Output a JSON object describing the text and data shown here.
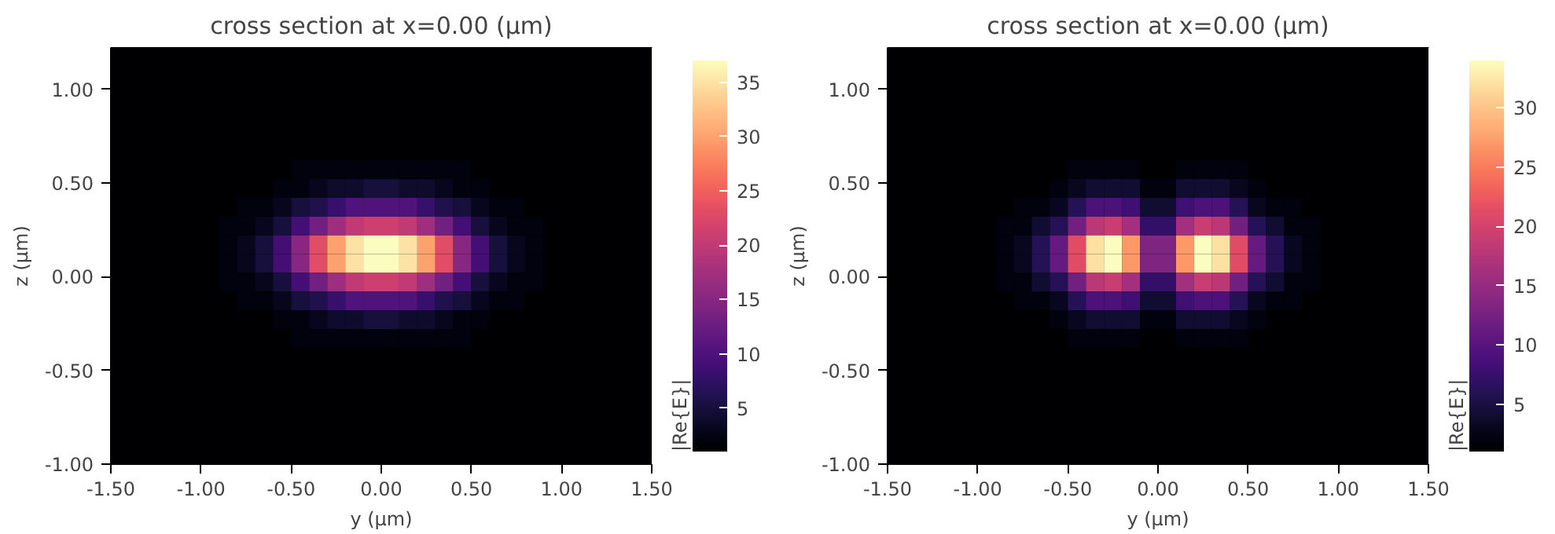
{
  "chart_data": [
    {
      "type": "heatmap",
      "title": "cross section at x=0.00 (μm)",
      "xlabel": "y (μm)",
      "ylabel": "z (μm)",
      "clabel": "|Re{E}|",
      "x": [
        -1.45,
        -1.35,
        -1.25,
        -1.15,
        -1.05,
        -0.95,
        -0.85,
        -0.75,
        -0.65,
        -0.55,
        -0.45,
        -0.35,
        -0.25,
        -0.15,
        -0.05,
        0.05,
        0.15,
        0.25,
        0.35,
        0.45,
        0.55,
        0.65,
        0.75,
        0.85,
        0.95,
        1.05,
        1.15,
        1.25,
        1.35,
        1.45
      ],
      "y": [
        1.17,
        1.07,
        0.97,
        0.87,
        0.77,
        0.67,
        0.57,
        0.47,
        0.37,
        0.27,
        0.17,
        0.07,
        -0.03,
        -0.13,
        -0.23,
        -0.33,
        -0.43,
        -0.53,
        -0.63,
        -0.73,
        -0.83,
        -0.93
      ],
      "cells": [
        [
          1,
          1,
          1,
          1,
          1,
          1,
          1,
          1,
          1,
          1,
          1,
          1,
          1,
          1,
          1,
          1,
          1,
          1,
          1,
          1,
          1,
          1,
          1,
          1,
          1,
          1,
          1,
          1,
          1,
          1
        ],
        [
          1,
          1,
          1,
          1,
          1,
          1,
          1,
          1,
          1,
          1,
          1,
          1,
          1,
          1,
          1,
          1,
          1,
          1,
          1,
          1,
          1,
          1,
          1,
          1,
          1,
          1,
          1,
          1,
          1,
          1
        ],
        [
          1,
          1,
          1,
          1,
          1,
          1,
          1,
          1,
          1,
          1,
          1,
          1,
          1,
          1,
          1,
          1,
          1,
          1,
          1,
          1,
          1,
          1,
          1,
          1,
          1,
          1,
          1,
          1,
          1,
          1
        ],
        [
          1,
          1,
          1,
          1,
          1,
          1,
          1,
          1,
          1,
          1,
          1,
          1,
          1,
          1,
          1,
          1,
          1,
          1,
          1,
          1,
          1,
          1,
          1,
          1,
          1,
          1,
          1,
          1,
          1,
          1
        ],
        [
          1,
          1,
          1,
          1,
          1,
          1,
          1,
          1,
          1,
          1,
          1,
          1,
          1,
          1,
          1,
          1,
          1,
          1,
          1,
          1,
          1,
          1,
          1,
          1,
          1,
          1,
          1,
          1,
          1,
          1
        ],
        [
          1,
          1,
          1,
          1,
          1,
          1,
          1,
          1,
          1,
          1,
          1,
          1,
          1,
          1,
          1,
          1,
          1,
          1,
          1,
          1,
          1,
          1,
          1,
          1,
          1,
          1,
          1,
          1,
          1,
          1
        ],
        [
          1,
          1,
          1,
          1,
          1,
          1,
          1,
          1,
          1,
          1,
          2,
          2,
          2,
          2,
          2,
          2,
          2,
          2,
          2,
          2,
          1,
          1,
          1,
          1,
          1,
          1,
          1,
          1,
          1,
          1
        ],
        [
          1,
          1,
          1,
          1,
          1,
          1,
          1,
          1,
          1,
          2,
          2,
          3,
          4,
          4,
          5,
          5,
          4,
          4,
          3,
          2,
          2,
          1,
          1,
          1,
          1,
          1,
          1,
          1,
          1,
          1
        ],
        [
          1,
          1,
          1,
          1,
          1,
          1,
          1,
          2,
          2,
          3,
          5,
          6,
          8,
          10,
          10,
          10,
          10,
          8,
          6,
          5,
          3,
          2,
          2,
          1,
          1,
          1,
          1,
          1,
          1,
          1
        ],
        [
          1,
          1,
          1,
          1,
          1,
          1,
          2,
          2,
          3,
          5,
          9,
          13,
          17,
          20,
          21,
          21,
          20,
          17,
          13,
          9,
          5,
          3,
          2,
          2,
          1,
          1,
          1,
          1,
          1,
          1
        ],
        [
          1,
          1,
          1,
          1,
          1,
          1,
          2,
          3,
          5,
          9,
          15,
          23,
          30,
          35,
          37,
          37,
          35,
          30,
          23,
          15,
          9,
          5,
          3,
          2,
          1,
          1,
          1,
          1,
          1,
          1
        ],
        [
          1,
          1,
          1,
          1,
          1,
          1,
          2,
          3,
          5,
          9,
          15,
          23,
          30,
          35,
          37,
          37,
          35,
          30,
          23,
          15,
          9,
          5,
          3,
          2,
          1,
          1,
          1,
          1,
          1,
          1
        ],
        [
          1,
          1,
          1,
          1,
          1,
          1,
          2,
          2,
          3,
          5,
          9,
          13,
          17,
          20,
          21,
          21,
          20,
          17,
          13,
          9,
          5,
          3,
          2,
          2,
          1,
          1,
          1,
          1,
          1,
          1
        ],
        [
          1,
          1,
          1,
          1,
          1,
          1,
          1,
          2,
          2,
          3,
          5,
          6,
          8,
          10,
          10,
          10,
          10,
          8,
          6,
          5,
          3,
          2,
          2,
          1,
          1,
          1,
          1,
          1,
          1,
          1
        ],
        [
          1,
          1,
          1,
          1,
          1,
          1,
          1,
          1,
          1,
          2,
          2,
          3,
          4,
          4,
          5,
          5,
          4,
          4,
          3,
          2,
          2,
          1,
          1,
          1,
          1,
          1,
          1,
          1,
          1,
          1
        ],
        [
          1,
          1,
          1,
          1,
          1,
          1,
          1,
          1,
          1,
          1,
          2,
          2,
          2,
          2,
          2,
          2,
          2,
          2,
          2,
          2,
          1,
          1,
          1,
          1,
          1,
          1,
          1,
          1,
          1,
          1
        ],
        [
          1,
          1,
          1,
          1,
          1,
          1,
          1,
          1,
          1,
          1,
          1,
          1,
          1,
          1,
          1,
          1,
          1,
          1,
          1,
          1,
          1,
          1,
          1,
          1,
          1,
          1,
          1,
          1,
          1,
          1
        ],
        [
          1,
          1,
          1,
          1,
          1,
          1,
          1,
          1,
          1,
          1,
          1,
          1,
          1,
          1,
          1,
          1,
          1,
          1,
          1,
          1,
          1,
          1,
          1,
          1,
          1,
          1,
          1,
          1,
          1,
          1
        ],
        [
          1,
          1,
          1,
          1,
          1,
          1,
          1,
          1,
          1,
          1,
          1,
          1,
          1,
          1,
          1,
          1,
          1,
          1,
          1,
          1,
          1,
          1,
          1,
          1,
          1,
          1,
          1,
          1,
          1,
          1
        ],
        [
          1,
          1,
          1,
          1,
          1,
          1,
          1,
          1,
          1,
          1,
          1,
          1,
          1,
          1,
          1,
          1,
          1,
          1,
          1,
          1,
          1,
          1,
          1,
          1,
          1,
          1,
          1,
          1,
          1,
          1
        ],
        [
          1,
          1,
          1,
          1,
          1,
          1,
          1,
          1,
          1,
          1,
          1,
          1,
          1,
          1,
          1,
          1,
          1,
          1,
          1,
          1,
          1,
          1,
          1,
          1,
          1,
          1,
          1,
          1,
          1,
          1
        ],
        [
          1,
          1,
          1,
          1,
          1,
          1,
          1,
          1,
          1,
          1,
          1,
          1,
          1,
          1,
          1,
          1,
          1,
          1,
          1,
          1,
          1,
          1,
          1,
          1,
          1,
          1,
          1,
          1,
          1,
          1
        ]
      ],
      "clim": [
        1,
        37
      ],
      "cticks": [
        5,
        10,
        15,
        20,
        25,
        30,
        35
      ],
      "xlim": [
        -1.5,
        1.5
      ],
      "ylim": [
        -1.0,
        1.22
      ],
      "xticks": [
        {
          "value": -1.5,
          "label": "-1.50"
        },
        {
          "value": -1.0,
          "label": "-1.00"
        },
        {
          "value": -0.5,
          "label": "-0.50"
        },
        {
          "value": 0,
          "label": "0.00"
        },
        {
          "value": 0.5,
          "label": "0.50"
        },
        {
          "value": 1.0,
          "label": "1.00"
        },
        {
          "value": 1.5,
          "label": "1.50"
        }
      ],
      "yticks": [
        {
          "value": -1.0,
          "label": "-1.00"
        },
        {
          "value": -0.5,
          "label": "-0.50"
        },
        {
          "value": 0,
          "label": "0.00"
        },
        {
          "value": 0.5,
          "label": "0.50"
        },
        {
          "value": 1.0,
          "label": "1.00"
        }
      ]
    },
    {
      "type": "heatmap",
      "title": "cross section at x=0.00 (μm)",
      "xlabel": "y (μm)",
      "ylabel": "z (μm)",
      "clabel": "|Re{E}|",
      "x": [
        -1.45,
        -1.35,
        -1.25,
        -1.15,
        -1.05,
        -0.95,
        -0.85,
        -0.75,
        -0.65,
        -0.55,
        -0.45,
        -0.35,
        -0.25,
        -0.15,
        -0.05,
        0.05,
        0.15,
        0.25,
        0.35,
        0.45,
        0.55,
        0.65,
        0.75,
        0.85,
        0.95,
        1.05,
        1.15,
        1.25,
        1.35,
        1.45
      ],
      "y": [
        1.17,
        1.07,
        0.97,
        0.87,
        0.77,
        0.67,
        0.57,
        0.47,
        0.37,
        0.27,
        0.17,
        0.07,
        -0.03,
        -0.13,
        -0.23,
        -0.33,
        -0.43,
        -0.53,
        -0.63,
        -0.73,
        -0.83,
        -0.93
      ],
      "cells": [
        [
          1,
          1,
          1,
          1,
          1,
          1,
          1,
          1,
          1,
          1,
          1,
          1,
          1,
          1,
          1,
          1,
          1,
          1,
          1,
          1,
          1,
          1,
          1,
          1,
          1,
          1,
          1,
          1,
          1,
          1
        ],
        [
          1,
          1,
          1,
          1,
          1,
          1,
          1,
          1,
          1,
          1,
          1,
          1,
          1,
          1,
          1,
          1,
          1,
          1,
          1,
          1,
          1,
          1,
          1,
          1,
          1,
          1,
          1,
          1,
          1,
          1
        ],
        [
          1,
          1,
          1,
          1,
          1,
          1,
          1,
          1,
          1,
          1,
          1,
          1,
          1,
          1,
          1,
          1,
          1,
          1,
          1,
          1,
          1,
          1,
          1,
          1,
          1,
          1,
          1,
          1,
          1,
          1
        ],
        [
          1,
          1,
          1,
          1,
          1,
          1,
          1,
          1,
          1,
          1,
          1,
          1,
          1,
          1,
          1,
          1,
          1,
          1,
          1,
          1,
          1,
          1,
          1,
          1,
          1,
          1,
          1,
          1,
          1,
          1
        ],
        [
          1,
          1,
          1,
          1,
          1,
          1,
          1,
          1,
          1,
          1,
          1,
          1,
          1,
          1,
          1,
          1,
          1,
          1,
          1,
          1,
          1,
          1,
          1,
          1,
          1,
          1,
          1,
          1,
          1,
          1
        ],
        [
          1,
          1,
          1,
          1,
          1,
          1,
          1,
          1,
          1,
          1,
          1,
          1,
          1,
          1,
          1,
          1,
          1,
          1,
          1,
          1,
          1,
          1,
          1,
          1,
          1,
          1,
          1,
          1,
          1,
          1
        ],
        [
          1,
          1,
          1,
          1,
          1,
          1,
          1,
          1,
          1,
          1,
          2,
          2,
          2,
          2,
          1,
          1,
          2,
          2,
          2,
          2,
          1,
          1,
          1,
          1,
          1,
          1,
          1,
          1,
          1,
          1
        ],
        [
          1,
          1,
          1,
          1,
          1,
          1,
          1,
          1,
          1,
          2,
          3,
          4,
          4,
          4,
          2,
          2,
          4,
          4,
          4,
          3,
          2,
          1,
          1,
          1,
          1,
          1,
          1,
          1,
          1,
          1
        ],
        [
          1,
          1,
          1,
          1,
          1,
          1,
          1,
          2,
          2,
          3,
          6,
          9,
          9,
          8,
          4,
          4,
          8,
          9,
          9,
          6,
          3,
          2,
          2,
          1,
          1,
          1,
          1,
          1,
          1,
          1
        ],
        [
          1,
          1,
          1,
          1,
          1,
          1,
          2,
          2,
          4,
          6,
          12,
          18,
          19,
          16,
          7,
          7,
          16,
          19,
          18,
          12,
          6,
          4,
          2,
          2,
          1,
          1,
          1,
          1,
          1,
          1
        ],
        [
          1,
          1,
          1,
          1,
          1,
          1,
          2,
          3,
          6,
          11,
          21,
          32,
          34,
          27,
          13,
          13,
          27,
          34,
          32,
          21,
          11,
          6,
          3,
          2,
          1,
          1,
          1,
          1,
          1,
          1
        ],
        [
          1,
          1,
          1,
          1,
          1,
          1,
          2,
          3,
          6,
          11,
          21,
          32,
          34,
          27,
          13,
          13,
          27,
          34,
          32,
          21,
          11,
          6,
          3,
          2,
          1,
          1,
          1,
          1,
          1,
          1
        ],
        [
          1,
          1,
          1,
          1,
          1,
          1,
          2,
          2,
          4,
          6,
          12,
          18,
          19,
          16,
          7,
          7,
          16,
          19,
          18,
          12,
          6,
          4,
          2,
          2,
          1,
          1,
          1,
          1,
          1,
          1
        ],
        [
          1,
          1,
          1,
          1,
          1,
          1,
          1,
          2,
          2,
          3,
          6,
          9,
          9,
          8,
          4,
          4,
          8,
          9,
          9,
          6,
          3,
          2,
          2,
          1,
          1,
          1,
          1,
          1,
          1,
          1
        ],
        [
          1,
          1,
          1,
          1,
          1,
          1,
          1,
          1,
          1,
          2,
          3,
          4,
          4,
          4,
          2,
          2,
          4,
          4,
          4,
          3,
          2,
          1,
          1,
          1,
          1,
          1,
          1,
          1,
          1,
          1
        ],
        [
          1,
          1,
          1,
          1,
          1,
          1,
          1,
          1,
          1,
          1,
          2,
          2,
          2,
          2,
          1,
          1,
          2,
          2,
          2,
          2,
          1,
          1,
          1,
          1,
          1,
          1,
          1,
          1,
          1,
          1
        ],
        [
          1,
          1,
          1,
          1,
          1,
          1,
          1,
          1,
          1,
          1,
          1,
          1,
          1,
          1,
          1,
          1,
          1,
          1,
          1,
          1,
          1,
          1,
          1,
          1,
          1,
          1,
          1,
          1,
          1,
          1
        ],
        [
          1,
          1,
          1,
          1,
          1,
          1,
          1,
          1,
          1,
          1,
          1,
          1,
          1,
          1,
          1,
          1,
          1,
          1,
          1,
          1,
          1,
          1,
          1,
          1,
          1,
          1,
          1,
          1,
          1,
          1
        ],
        [
          1,
          1,
          1,
          1,
          1,
          1,
          1,
          1,
          1,
          1,
          1,
          1,
          1,
          1,
          1,
          1,
          1,
          1,
          1,
          1,
          1,
          1,
          1,
          1,
          1,
          1,
          1,
          1,
          1,
          1
        ],
        [
          1,
          1,
          1,
          1,
          1,
          1,
          1,
          1,
          1,
          1,
          1,
          1,
          1,
          1,
          1,
          1,
          1,
          1,
          1,
          1,
          1,
          1,
          1,
          1,
          1,
          1,
          1,
          1,
          1,
          1
        ],
        [
          1,
          1,
          1,
          1,
          1,
          1,
          1,
          1,
          1,
          1,
          1,
          1,
          1,
          1,
          1,
          1,
          1,
          1,
          1,
          1,
          1,
          1,
          1,
          1,
          1,
          1,
          1,
          1,
          1,
          1
        ],
        [
          1,
          1,
          1,
          1,
          1,
          1,
          1,
          1,
          1,
          1,
          1,
          1,
          1,
          1,
          1,
          1,
          1,
          1,
          1,
          1,
          1,
          1,
          1,
          1,
          1,
          1,
          1,
          1,
          1,
          1
        ]
      ],
      "clim": [
        1,
        34
      ],
      "cticks": [
        5,
        10,
        15,
        20,
        25,
        30
      ],
      "xlim": [
        -1.5,
        1.5
      ],
      "ylim": [
        -1.0,
        1.22
      ],
      "xticks": [
        {
          "value": -1.5,
          "label": "-1.50"
        },
        {
          "value": -1.0,
          "label": "-1.00"
        },
        {
          "value": -0.5,
          "label": "-0.50"
        },
        {
          "value": 0,
          "label": "0.00"
        },
        {
          "value": 0.5,
          "label": "0.50"
        },
        {
          "value": 1.0,
          "label": "1.00"
        },
        {
          "value": 1.5,
          "label": "1.50"
        }
      ],
      "yticks": [
        {
          "value": -1.0,
          "label": "-1.00"
        },
        {
          "value": -0.5,
          "label": "-0.50"
        },
        {
          "value": 0,
          "label": "0.00"
        },
        {
          "value": 0.5,
          "label": "0.50"
        },
        {
          "value": 1.0,
          "label": "1.00"
        }
      ]
    }
  ]
}
